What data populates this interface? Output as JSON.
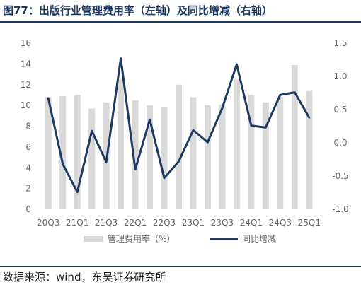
{
  "header": {
    "title": "图77：出版行业管理费用率（左轴）及同比增减（右轴）"
  },
  "footer": {
    "source": "数据来源：wind，东吴证券研究所"
  },
  "colors": {
    "bar": "#d9d9d9",
    "line": "#1f3864",
    "axis_text": "#666666",
    "title": "#1e3a63"
  },
  "chart_data": {
    "type": "bar",
    "categories": [
      "20Q3",
      "20Q4",
      "21Q1",
      "21Q2",
      "21Q3",
      "21Q4",
      "22Q1",
      "22Q2",
      "22Q3",
      "22Q4",
      "23Q1",
      "23Q2",
      "23Q3",
      "23Q4",
      "24Q1",
      "24Q2",
      "24Q3",
      "24Q4",
      "25Q1"
    ],
    "x_tick_labels": [
      "20Q3",
      "21Q1",
      "21Q3",
      "22Q1",
      "22Q3",
      "23Q1",
      "23Q3",
      "24Q1",
      "24Q3",
      "25Q1"
    ],
    "series": [
      {
        "name": "管理费用率（%）",
        "type": "bar",
        "axis": "left",
        "values": [
          10.8,
          10.9,
          11.0,
          9.7,
          10.3,
          12.5,
          10.5,
          10.0,
          9.8,
          12.0,
          10.8,
          10.0,
          10.1,
          12.5,
          11.0,
          10.3,
          10.8,
          13.9,
          11.4
        ]
      },
      {
        "name": "同比增减",
        "type": "line",
        "axis": "right",
        "values": [
          0.67,
          -0.32,
          -0.74,
          0.18,
          -0.29,
          1.27,
          -0.4,
          0.35,
          -0.53,
          -0.28,
          0.19,
          0.01,
          0.52,
          1.18,
          0.26,
          0.23,
          0.72,
          0.76,
          0.38
        ]
      }
    ],
    "left_axis": {
      "ylim": [
        0,
        16
      ],
      "ticks": [
        "0",
        "2",
        "4",
        "6",
        "8",
        "10",
        "12",
        "14",
        "16"
      ]
    },
    "right_axis": {
      "ylim": [
        -1.0,
        1.5
      ],
      "ticks": [
        "-1.0",
        "-0.5",
        "0.0",
        "0.5",
        "1.0",
        "1.5"
      ]
    },
    "legend": {
      "position": "bottom"
    },
    "grid": false
  }
}
